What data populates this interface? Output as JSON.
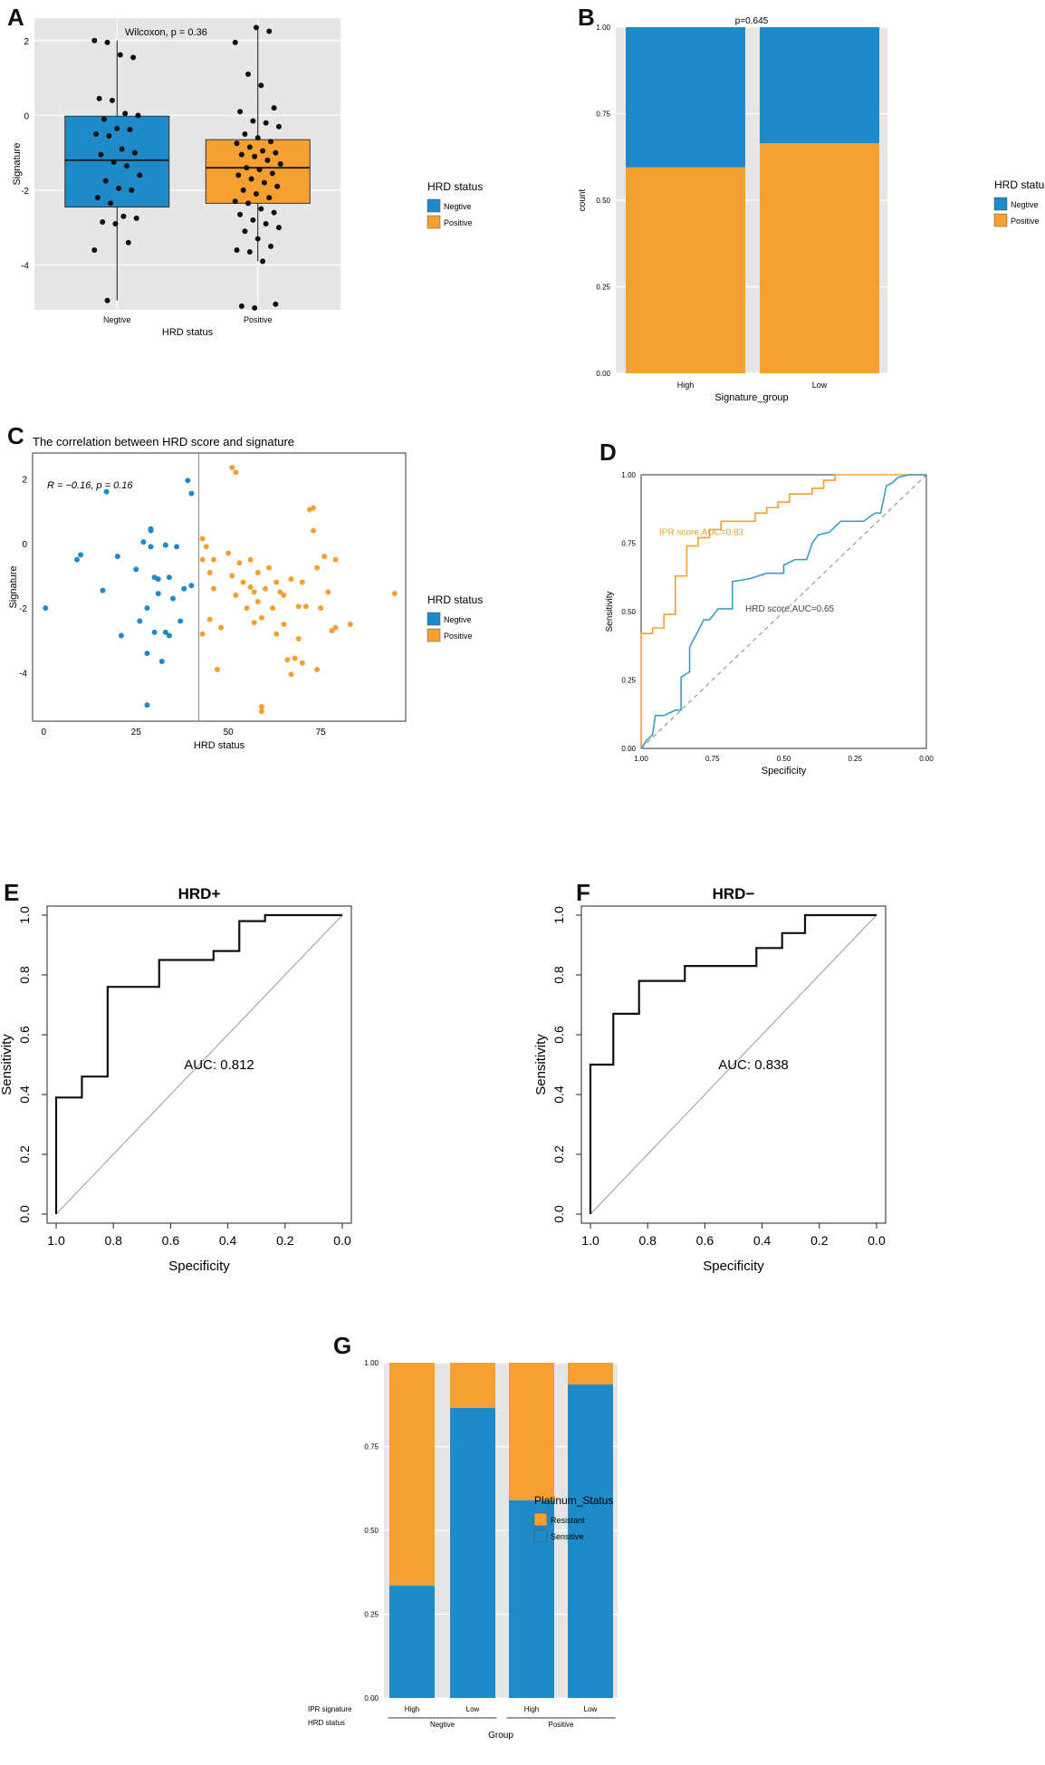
{
  "panel_labels": {
    "A": "A",
    "B": "B",
    "C": "C",
    "D": "D",
    "E": "E",
    "F": "F",
    "G": "G"
  },
  "colors": {
    "blue": "#1f8ac8",
    "orange": "#f5a030",
    "panel_bg": "#e6e6e6",
    "grid": "#ffffff",
    "black": "#111111"
  },
  "chart_data": [
    {
      "id": "A",
      "type": "box",
      "annotation": "Wilcoxon, p = 0.36",
      "xlabel": "HRD status",
      "ylabel": "Signature",
      "categories": [
        "Negtive",
        "Positive"
      ],
      "ylim": [
        -5.2,
        2.6
      ],
      "yticks": [
        -4,
        -2,
        0,
        2
      ],
      "legend": {
        "title": "HRD status",
        "items": [
          "Negtive",
          "Positive"
        ],
        "position": "right"
      },
      "boxes": [
        {
          "name": "Negtive",
          "q1": -2.45,
          "median": -1.2,
          "q3": -0.02,
          "whisker_low": -4.95,
          "whisker_high": 2.0
        },
        {
          "name": "Positive",
          "q1": -2.35,
          "median": -1.4,
          "q3": -0.65,
          "whisker_low": -3.9,
          "whisker_high": 2.3
        }
      ],
      "points": {
        "Negtive": [
          2.0,
          1.95,
          1.62,
          1.55,
          0.45,
          0.4,
          0.05,
          0.0,
          -0.1,
          -0.35,
          -0.38,
          -0.5,
          -0.55,
          -0.9,
          -1.0,
          -1.05,
          -1.25,
          -1.35,
          -1.6,
          -1.75,
          -1.95,
          -2.0,
          -2.2,
          -2.35,
          -2.7,
          -2.75,
          -2.85,
          -2.9,
          -3.4,
          -3.6,
          -4.95
        ],
        "Positive": [
          2.35,
          2.25,
          1.95,
          1.1,
          0.8,
          0.2,
          0.1,
          -0.15,
          -0.2,
          -0.3,
          -0.5,
          -0.6,
          -0.7,
          -0.75,
          -0.85,
          -0.95,
          -1.0,
          -1.05,
          -1.1,
          -1.2,
          -1.3,
          -1.4,
          -1.45,
          -1.55,
          -1.6,
          -1.7,
          -1.8,
          -1.9,
          -2.0,
          -2.1,
          -2.2,
          -2.3,
          -2.35,
          -2.5,
          -2.6,
          -2.65,
          -2.8,
          -2.9,
          -3.0,
          -3.1,
          -3.3,
          -3.5,
          -3.6,
          -3.65,
          -3.9,
          -5.05,
          -5.1,
          -5.15
        ]
      }
    },
    {
      "id": "B",
      "type": "stacked_bar",
      "annotation": "p=0.645",
      "xlabel": "Signature_group",
      "ylabel": "count",
      "categories": [
        "High",
        "Low"
      ],
      "ylim": [
        0,
        1
      ],
      "yticks": [
        "0.00",
        "0.25",
        "0.50",
        "0.75",
        "1.00"
      ],
      "legend": {
        "title": "HRD status",
        "items": [
          "Negtive",
          "Positive"
        ],
        "position": "right"
      },
      "series": [
        {
          "name": "Positive",
          "values": [
            0.595,
            0.665
          ]
        },
        {
          "name": "Negtive",
          "values": [
            0.405,
            0.335
          ]
        }
      ]
    },
    {
      "id": "C",
      "type": "scatter",
      "title": "The correlation between HRD score and signature",
      "annotation": "R = −0.16, p = 0.16",
      "xlabel": "HRD status",
      "ylabel": "Signature",
      "xlim": [
        -3,
        98
      ],
      "ylim": [
        -5.5,
        2.8
      ],
      "xticks": [
        0,
        25,
        50,
        75
      ],
      "yticks": [
        -4,
        -2,
        0,
        2
      ],
      "vline": 42,
      "legend": {
        "title": "HRD status",
        "items": [
          "Negtive",
          "Positive"
        ],
        "position": "right"
      },
      "negative": [
        [
          0.5,
          -2.0
        ],
        [
          9,
          -0.5
        ],
        [
          10,
          -0.35
        ],
        [
          16,
          -1.45
        ],
        [
          17,
          1.6
        ],
        [
          20,
          -0.4
        ],
        [
          21,
          -2.85
        ],
        [
          25,
          -0.8
        ],
        [
          26,
          -2.4
        ],
        [
          27,
          0.05
        ],
        [
          28,
          -3.4
        ],
        [
          28,
          -2.0
        ],
        [
          28,
          -5.0
        ],
        [
          29,
          0.45
        ],
        [
          29,
          0.4
        ],
        [
          29,
          -0.1
        ],
        [
          30,
          -1.05
        ],
        [
          30,
          -2.75
        ],
        [
          31,
          -1.55
        ],
        [
          31,
          -1.1
        ],
        [
          32,
          -3.65
        ],
        [
          33,
          -0.05
        ],
        [
          33,
          -2.75
        ],
        [
          34,
          -1.05
        ],
        [
          34,
          -2.85
        ],
        [
          35,
          -1.7
        ],
        [
          36,
          -0.1
        ],
        [
          37,
          -2.4
        ],
        [
          38,
          -1.4
        ],
        [
          39,
          1.95
        ],
        [
          40,
          1.55
        ],
        [
          40,
          -1.3
        ]
      ],
      "positive": [
        [
          43,
          0.15
        ],
        [
          43,
          -0.5
        ],
        [
          43,
          -2.8
        ],
        [
          44,
          -0.1
        ],
        [
          45,
          -0.9
        ],
        [
          45,
          -2.35
        ],
        [
          46,
          -0.5
        ],
        [
          46,
          -1.4
        ],
        [
          47,
          -3.9
        ],
        [
          48,
          -2.6
        ],
        [
          50,
          -0.3
        ],
        [
          51,
          -1.0
        ],
        [
          51,
          2.35
        ],
        [
          52,
          2.2
        ],
        [
          52,
          -1.6
        ],
        [
          53,
          -0.6
        ],
        [
          54,
          -1.2
        ],
        [
          55,
          -2.0
        ],
        [
          56,
          -0.5
        ],
        [
          56,
          -1.35
        ],
        [
          57,
          -1.5
        ],
        [
          57,
          -2.45
        ],
        [
          58,
          -0.9
        ],
        [
          58,
          -1.8
        ],
        [
          59,
          -5.05
        ],
        [
          59,
          -5.2
        ],
        [
          59,
          -2.3
        ],
        [
          60,
          -1.4
        ],
        [
          61,
          -0.75
        ],
        [
          62,
          -2.0
        ],
        [
          63,
          -1.2
        ],
        [
          63,
          -2.8
        ],
        [
          64,
          -1.5
        ],
        [
          65,
          -1.6
        ],
        [
          65,
          -2.5
        ],
        [
          66,
          -3.6
        ],
        [
          67,
          -1.1
        ],
        [
          67,
          -4.05
        ],
        [
          68,
          -3.55
        ],
        [
          69,
          -1.95
        ],
        [
          69,
          -2.95
        ],
        [
          70,
          -3.7
        ],
        [
          70,
          -1.2
        ],
        [
          71,
          -1.95
        ],
        [
          72,
          1.05
        ],
        [
          73,
          1.1
        ],
        [
          73,
          0.4
        ],
        [
          74,
          -0.75
        ],
        [
          74,
          -3.9
        ],
        [
          75,
          -2.0
        ],
        [
          76,
          -0.4
        ],
        [
          77,
          -1.5
        ],
        [
          78,
          -2.7
        ],
        [
          79,
          -0.5
        ],
        [
          79,
          -2.6
        ],
        [
          83,
          -2.5
        ],
        [
          95,
          -1.55
        ]
      ]
    },
    {
      "id": "D",
      "type": "roc",
      "xlabel": "Specificity",
      "ylabel": "Sensitivity",
      "xticks": [
        "1.00",
        "0.75",
        "0.50",
        "0.25",
        "0.00"
      ],
      "yticks": [
        "0.00",
        "0.25",
        "0.50",
        "0.75",
        "1.00"
      ],
      "series": [
        {
          "name": "IPR score,AUC=0.83",
          "points": [
            [
              1.0,
              0.0
            ],
            [
              1.0,
              0.42
            ],
            [
              0.96,
              0.42
            ],
            [
              0.96,
              0.44
            ],
            [
              0.92,
              0.44
            ],
            [
              0.92,
              0.49
            ],
            [
              0.88,
              0.49
            ],
            [
              0.88,
              0.63
            ],
            [
              0.84,
              0.63
            ],
            [
              0.84,
              0.74
            ],
            [
              0.8,
              0.74
            ],
            [
              0.8,
              0.77
            ],
            [
              0.76,
              0.77
            ],
            [
              0.76,
              0.8
            ],
            [
              0.72,
              0.8
            ],
            [
              0.72,
              0.83
            ],
            [
              0.6,
              0.83
            ],
            [
              0.6,
              0.86
            ],
            [
              0.56,
              0.86
            ],
            [
              0.56,
              0.88
            ],
            [
              0.52,
              0.88
            ],
            [
              0.52,
              0.9
            ],
            [
              0.48,
              0.9
            ],
            [
              0.48,
              0.93
            ],
            [
              0.4,
              0.93
            ],
            [
              0.4,
              0.95
            ],
            [
              0.36,
              0.95
            ],
            [
              0.36,
              0.98
            ],
            [
              0.32,
              0.98
            ],
            [
              0.32,
              1.0
            ],
            [
              0.0,
              1.0
            ]
          ]
        },
        {
          "name": "HRD score,AUC=0.65",
          "points": [
            [
              1.0,
              0.0
            ],
            [
              0.98,
              0.03
            ],
            [
              0.96,
              0.05
            ],
            [
              0.95,
              0.12
            ],
            [
              0.92,
              0.12
            ],
            [
              0.88,
              0.14
            ],
            [
              0.86,
              0.14
            ],
            [
              0.86,
              0.26
            ],
            [
              0.83,
              0.28
            ],
            [
              0.83,
              0.37
            ],
            [
              0.8,
              0.43
            ],
            [
              0.78,
              0.47
            ],
            [
              0.76,
              0.47
            ],
            [
              0.73,
              0.51
            ],
            [
              0.68,
              0.51
            ],
            [
              0.68,
              0.61
            ],
            [
              0.62,
              0.62
            ],
            [
              0.56,
              0.64
            ],
            [
              0.5,
              0.64
            ],
            [
              0.5,
              0.67
            ],
            [
              0.46,
              0.69
            ],
            [
              0.42,
              0.69
            ],
            [
              0.4,
              0.75
            ],
            [
              0.38,
              0.78
            ],
            [
              0.34,
              0.79
            ],
            [
              0.32,
              0.81
            ],
            [
              0.3,
              0.83
            ],
            [
              0.22,
              0.83
            ],
            [
              0.18,
              0.86
            ],
            [
              0.16,
              0.86
            ],
            [
              0.14,
              0.96
            ],
            [
              0.12,
              0.97
            ],
            [
              0.1,
              0.99
            ],
            [
              0.06,
              1.0
            ],
            [
              0.0,
              1.0
            ]
          ]
        }
      ]
    },
    {
      "id": "E",
      "type": "roc",
      "title": "HRD+",
      "annotation": "AUC: 0.812",
      "xlabel": "Specificity",
      "ylabel": "Sensitivity",
      "xticks": [
        "1.0",
        "0.8",
        "0.6",
        "0.4",
        "0.2",
        "0.0"
      ],
      "yticks": [
        "0.0",
        "0.2",
        "0.4",
        "0.6",
        "0.8",
        "1.0"
      ],
      "points": [
        [
          1.0,
          0.0
        ],
        [
          1.0,
          0.39
        ],
        [
          0.91,
          0.39
        ],
        [
          0.91,
          0.46
        ],
        [
          0.82,
          0.46
        ],
        [
          0.82,
          0.76
        ],
        [
          0.64,
          0.76
        ],
        [
          0.64,
          0.85
        ],
        [
          0.45,
          0.85
        ],
        [
          0.45,
          0.88
        ],
        [
          0.36,
          0.88
        ],
        [
          0.36,
          0.98
        ],
        [
          0.27,
          0.98
        ],
        [
          0.27,
          1.0
        ],
        [
          0.0,
          1.0
        ]
      ]
    },
    {
      "id": "F",
      "type": "roc",
      "title": "HRD−",
      "annotation": "AUC: 0.838",
      "xlabel": "Specificity",
      "ylabel": "Sensitivity",
      "xticks": [
        "1.0",
        "0.8",
        "0.6",
        "0.4",
        "0.2",
        "0.0"
      ],
      "yticks": [
        "0.0",
        "0.2",
        "0.4",
        "0.6",
        "0.8",
        "1.0"
      ],
      "points": [
        [
          1.0,
          0.0
        ],
        [
          1.0,
          0.5
        ],
        [
          0.92,
          0.5
        ],
        [
          0.92,
          0.67
        ],
        [
          0.83,
          0.67
        ],
        [
          0.83,
          0.78
        ],
        [
          0.67,
          0.78
        ],
        [
          0.67,
          0.83
        ],
        [
          0.42,
          0.83
        ],
        [
          0.42,
          0.89
        ],
        [
          0.33,
          0.89
        ],
        [
          0.33,
          0.94
        ],
        [
          0.25,
          0.94
        ],
        [
          0.25,
          1.0
        ],
        [
          0.0,
          1.0
        ]
      ]
    },
    {
      "id": "G",
      "type": "stacked_bar",
      "xlabel": "Group",
      "ylabel": "",
      "row_labels": [
        "IPR signature",
        "HRD status"
      ],
      "categories": [
        "High",
        "Low",
        "High",
        "Low"
      ],
      "groups": [
        "Negtive",
        "Positive"
      ],
      "ylim": [
        0,
        1
      ],
      "yticks": [
        "0.00",
        "0.25",
        "0.50",
        "0.75",
        "1.00"
      ],
      "legend": {
        "title": "Platinum_Status",
        "items": [
          "Resistant",
          "Sensitive"
        ],
        "position": "right"
      },
      "series": [
        {
          "name": "Sensitive",
          "values": [
            0.335,
            0.865,
            0.59,
            0.935
          ]
        },
        {
          "name": "Resistant",
          "values": [
            0.665,
            0.135,
            0.41,
            0.065
          ]
        }
      ]
    }
  ]
}
